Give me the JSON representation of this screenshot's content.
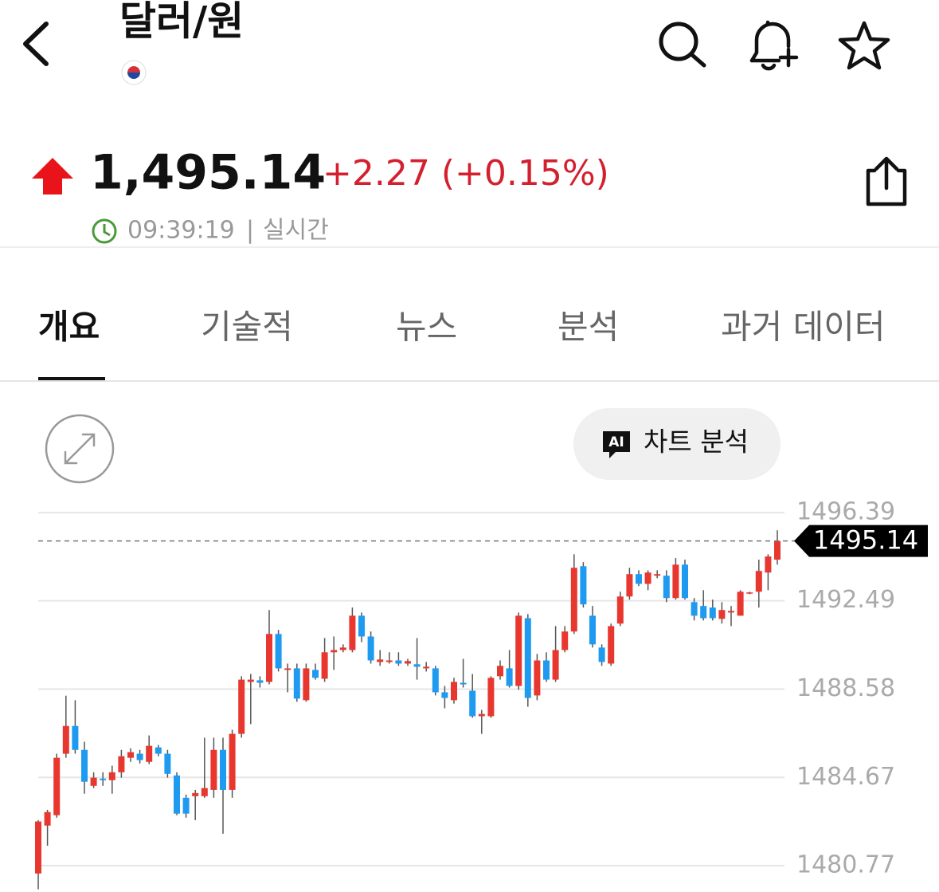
{
  "header": {
    "title": "달러/원"
  },
  "quote": {
    "price": "1,495.14",
    "change": "+2.27 (+0.15%)",
    "time": "09:39:19",
    "separator": "|",
    "status": "실시간"
  },
  "tabs": {
    "items": [
      "개요",
      "기술적",
      "뉴스",
      "분석",
      "과거 데이터"
    ],
    "active": 0
  },
  "chart_toolbar": {
    "badge": "AI",
    "button": "차트 분석"
  },
  "chart_data": {
    "type": "candlestick",
    "open": [
      1480.42,
      1482.54,
      1483.0,
      1485.72,
      1486.95,
      1485.89,
      1484.3,
      1484.62,
      1484.55,
      1484.9,
      1485.54,
      1485.72,
      1485.36,
      1486.0,
      1485.72,
      1484.76,
      1483.77,
      1483.84,
      1483.84,
      1484.12,
      1485.89,
      1484.12,
      1486.6,
      1488.9,
      1488.97,
      1488.9,
      1491.02,
      1489.43,
      1489.5,
      1488.09,
      1489.43,
      1489.04,
      1490.21,
      1490.31,
      1490.31,
      1491.83,
      1490.91,
      1489.78,
      1489.78,
      1489.85,
      1489.71,
      1489.68,
      1489.5,
      1489.5,
      1488.44,
      1488.09,
      1488.86,
      1488.51,
      1487.38,
      1487.38,
      1489.15,
      1489.5,
      1488.72,
      1491.72,
      1488.3,
      1489.85,
      1489.0,
      1490.31,
      1491.13,
      1494.02,
      1491.83,
      1490.42,
      1489.71,
      1491.48,
      1492.68,
      1493.67,
      1493.24,
      1493.6,
      1493.6,
      1492.61,
      1494.09,
      1492.43,
      1492.26,
      1492.19,
      1491.69,
      1491.97,
      1491.83,
      1492.82,
      1492.89,
      1493.74,
      1494.31
    ],
    "high": [
      1482.78,
      1483.24,
      1485.72,
      1488.29,
      1488.09,
      1486.25,
      1484.9,
      1484.9,
      1485.19,
      1485.89,
      1485.96,
      1485.89,
      1486.53,
      1486.11,
      1485.89,
      1484.9,
      1483.91,
      1484.12,
      1486.43,
      1486.43,
      1486.43,
      1486.78,
      1489.15,
      1489.25,
      1489.15,
      1492.08,
      1491.2,
      1489.71,
      1489.71,
      1489.71,
      1489.71,
      1490.84,
      1490.91,
      1490.56,
      1492.19,
      1491.97,
      1491.13,
      1490.31,
      1490.21,
      1490.21,
      1489.92,
      1490.84,
      1489.78,
      1489.61,
      1488.72,
      1489.08,
      1489.92,
      1489.25,
      1487.66,
      1489.15,
      1489.85,
      1490.31,
      1491.97,
      1491.9,
      1490.14,
      1490.21,
      1491.37,
      1491.37,
      1494.55,
      1494.2,
      1492.26,
      1490.56,
      1491.48,
      1492.89,
      1493.95,
      1493.84,
      1493.84,
      1493.84,
      1493.84,
      1494.38,
      1494.31,
      1492.61,
      1492.96,
      1492.54,
      1492.43,
      1492.26,
      1492.96,
      1492.89,
      1494.31,
      1494.55,
      1495.61
    ],
    "low": [
      1479.72,
      1481.65,
      1482.89,
      1485.54,
      1485.72,
      1483.95,
      1484.2,
      1484.3,
      1483.95,
      1484.66,
      1485.36,
      1485.29,
      1485.26,
      1485.61,
      1484.66,
      1483.0,
      1482.89,
      1482.78,
      1483.77,
      1483.77,
      1482.18,
      1483.77,
      1486.43,
      1487.03,
      1488.65,
      1488.79,
      1489.36,
      1488.44,
      1488.02,
      1488.02,
      1489.0,
      1488.9,
      1489.43,
      1490.21,
      1490.21,
      1490.66,
      1489.71,
      1489.61,
      1489.71,
      1489.61,
      1489.61,
      1489.0,
      1489.36,
      1488.3,
      1487.73,
      1487.94,
      1488.65,
      1487.31,
      1486.6,
      1487.31,
      1489.0,
      1488.65,
      1488.55,
      1487.8,
      1488.09,
      1488.9,
      1488.9,
      1490.21,
      1491.02,
      1492.19,
      1490.42,
      1489.61,
      1489.61,
      1491.37,
      1492.54,
      1493.14,
      1492.96,
      1493.49,
      1492.43,
      1492.54,
      1492.54,
      1491.62,
      1491.62,
      1491.62,
      1491.48,
      1491.37,
      1491.83,
      1492.78,
      1492.19,
      1492.96,
      1494.09
    ],
    "close": [
      1482.72,
      1483.14,
      1485.54,
      1486.95,
      1485.89,
      1484.48,
      1484.66,
      1484.55,
      1484.9,
      1485.61,
      1485.79,
      1485.44,
      1486.07,
      1485.72,
      1484.83,
      1483.07,
      1483.07,
      1483.98,
      1484.2,
      1485.89,
      1484.12,
      1486.6,
      1489.0,
      1489.0,
      1488.86,
      1491.02,
      1489.5,
      1489.5,
      1488.16,
      1489.5,
      1489.08,
      1490.21,
      1490.31,
      1490.42,
      1491.83,
      1490.91,
      1489.85,
      1489.89,
      1489.85,
      1489.71,
      1489.82,
      1489.57,
      1489.57,
      1488.44,
      1488.19,
      1488.9,
      1488.79,
      1487.38,
      1487.48,
      1489.08,
      1489.61,
      1488.72,
      1491.83,
      1488.19,
      1489.85,
      1489.0,
      1490.31,
      1491.13,
      1493.95,
      1492.33,
      1490.56,
      1489.78,
      1491.37,
      1492.68,
      1493.67,
      1493.24,
      1493.74,
      1493.67,
      1492.61,
      1494.09,
      1492.61,
      1491.83,
      1491.72,
      1491.72,
      1492.08,
      1492.04,
      1492.89,
      1492.86,
      1493.81,
      1494.45,
      1495.14
    ],
    "ylim": [
      1479.6,
      1497.03
    ],
    "yticks": [
      1496.39,
      1492.49,
      1488.58,
      1484.67,
      1480.77
    ],
    "grid": true,
    "current_price": 1495.14,
    "up_color": "#e8372e",
    "down_color": "#1e9bf0"
  }
}
